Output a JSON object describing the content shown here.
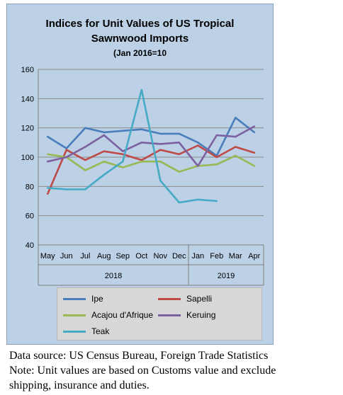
{
  "chart_data": {
    "type": "line",
    "title": "Indices for Unit Values of US Tropical Sawnwood Imports",
    "title_lines": [
      "Indices for Unit Values of US Tropical",
      "Sawnwood Imports"
    ],
    "subtitle": "(Jan 2016=10",
    "categories": [
      "May",
      "Jun",
      "Jul",
      "Aug",
      "Sep",
      "Oct",
      "Nov",
      "Dec",
      "Jan",
      "Feb",
      "Mar",
      "Apr"
    ],
    "year_groups": [
      {
        "label": "2018",
        "start": 0,
        "end": 7
      },
      {
        "label": "2019",
        "start": 8,
        "end": 11
      }
    ],
    "ylim": [
      40,
      160
    ],
    "yticks": [
      40,
      60,
      80,
      100,
      120,
      140,
      160
    ],
    "grid": true,
    "legend_position": "bottom",
    "series": [
      {
        "name": "Ipe",
        "color": "#4a7ebb",
        "values": [
          114,
          106,
          120,
          117,
          118,
          119,
          116,
          116,
          110,
          101,
          127,
          117
        ]
      },
      {
        "name": "Sapelli",
        "color": "#be4b48",
        "values": [
          75,
          105,
          98,
          104,
          102,
          98,
          105,
          102,
          108,
          100,
          107,
          103
        ]
      },
      {
        "name": "Acajou d'Afrique",
        "color": "#98b954",
        "values": [
          102,
          100,
          91,
          97,
          93,
          97,
          97,
          90,
          94,
          95,
          101,
          94
        ]
      },
      {
        "name": "Keruing",
        "color": "#7d60a0",
        "values": [
          97,
          100,
          107,
          115,
          104,
          110,
          109,
          110,
          94,
          115,
          114,
          121
        ]
      },
      {
        "name": "Teak",
        "color": "#46aac5",
        "values": [
          79,
          78,
          78,
          88,
          97,
          146,
          84,
          69,
          71,
          70,
          null,
          null
        ]
      }
    ]
  },
  "footnotes": {
    "source": "Data source: US Census Bureau, Foreign Trade Statistics",
    "note_1": "Note: Unit values are based on Customs value and exclude",
    "note_2": "shipping, insurance and duties."
  }
}
